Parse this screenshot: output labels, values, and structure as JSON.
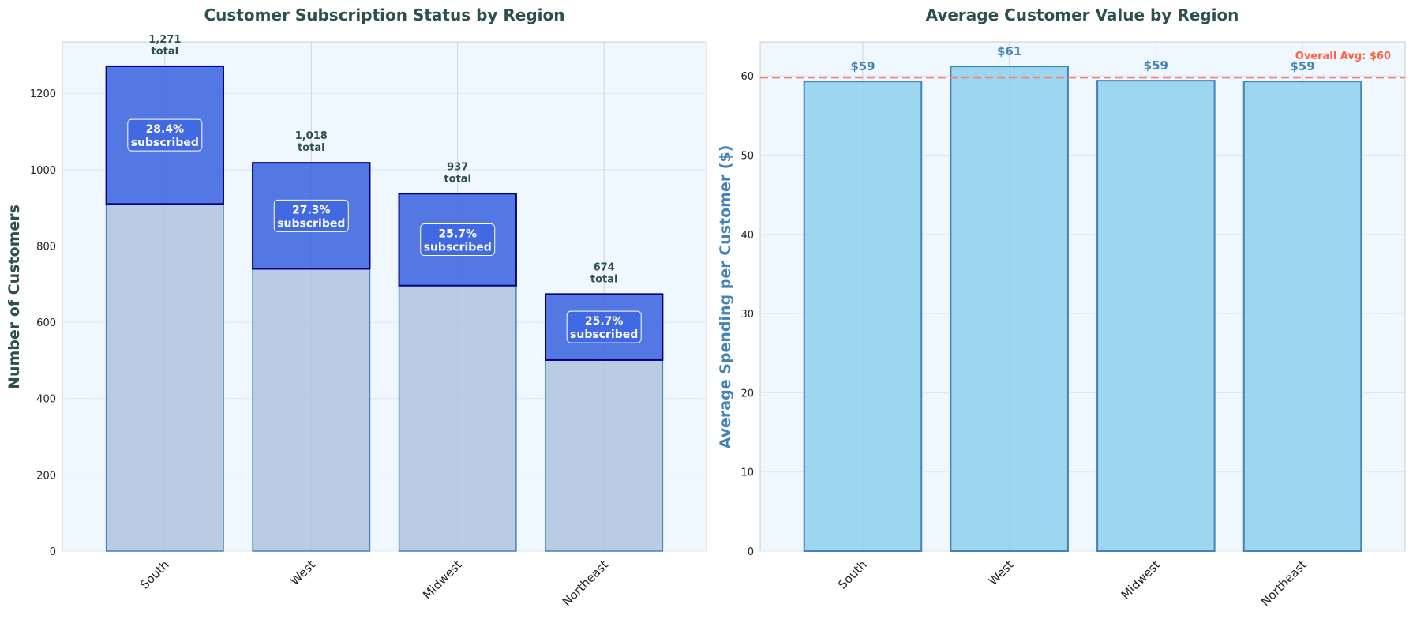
{
  "chart_data": [
    {
      "type": "bar",
      "stacked": true,
      "title": "Customer Subscription Status by Region",
      "ylabel": "Number of Customers",
      "xlabel": "",
      "categories": [
        "South",
        "West",
        "Midwest",
        "Northeast"
      ],
      "totals": [
        1271,
        1018,
        937,
        674
      ],
      "total_labels": [
        "1,271",
        "1,018",
        "937",
        "674"
      ],
      "total_suffix": "total",
      "subscribed_pct": [
        28.4,
        27.3,
        25.7,
        25.7
      ],
      "pct_labels": [
        "28.4%",
        "27.3%",
        "25.7%",
        "25.7%"
      ],
      "pct_suffix": "subscribed",
      "ylim": [
        0,
        1335
      ],
      "yticks": [
        0,
        200,
        400,
        600,
        800,
        1000,
        1200
      ],
      "colors": {
        "not_subscribed": "#b0c4de",
        "subscribed": "#4169e1",
        "edge_bottom": "#4682b4",
        "edge_top": "#000080"
      },
      "grid": true
    },
    {
      "type": "bar",
      "title": "Average Customer Value by Region",
      "ylabel": "Average Spending per Customer ($)",
      "xlabel": "",
      "categories": [
        "South",
        "West",
        "Midwest",
        "Northeast"
      ],
      "values": [
        59.3,
        61.2,
        59.4,
        59.3
      ],
      "value_labels": [
        "$59",
        "$61",
        "$59",
        "$59"
      ],
      "reference_line": {
        "value": 59.8,
        "label": "Overall Avg: $60",
        "color": "#fa8072"
      },
      "ylim": [
        0,
        64.3
      ],
      "yticks": [
        0,
        10,
        20,
        30,
        40,
        50,
        60
      ],
      "colors": {
        "bar": "#87ceeb",
        "edge": "#4682b4"
      },
      "grid": true
    }
  ]
}
